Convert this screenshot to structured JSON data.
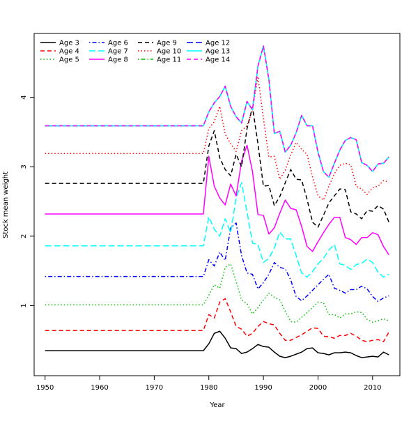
{
  "chart_data": {
    "type": "line",
    "title": "",
    "xlabel": "Year",
    "ylabel": "Stock mean weight",
    "xlim": [
      1948,
      2015
    ],
    "ylim": [
      -0.01,
      4.92
    ],
    "x_ticks": [
      1950,
      1960,
      1970,
      1980,
      1990,
      2000,
      2010
    ],
    "y_ticks": [
      1,
      2,
      3,
      4
    ],
    "grid": false,
    "legend_position": "top-left",
    "x": [
      1950,
      1951,
      1952,
      1953,
      1954,
      1955,
      1956,
      1957,
      1958,
      1959,
      1960,
      1961,
      1962,
      1963,
      1964,
      1965,
      1966,
      1967,
      1968,
      1969,
      1970,
      1971,
      1972,
      1973,
      1974,
      1975,
      1976,
      1977,
      1978,
      1979,
      1980,
      1981,
      1982,
      1983,
      1984,
      1985,
      1986,
      1987,
      1988,
      1989,
      1990,
      1991,
      1992,
      1993,
      1994,
      1995,
      1996,
      1997,
      1998,
      1999,
      2000,
      2001,
      2002,
      2003,
      2004,
      2005,
      2006,
      2007,
      2008,
      2009,
      2010,
      2011,
      2012,
      2013
    ],
    "series": [
      {
        "name": "Age 3",
        "color": "#000000",
        "dash": "solid",
        "values": [
          0.35,
          0.35,
          0.35,
          0.35,
          0.35,
          0.35,
          0.35,
          0.35,
          0.35,
          0.35,
          0.35,
          0.35,
          0.35,
          0.35,
          0.35,
          0.35,
          0.35,
          0.35,
          0.35,
          0.35,
          0.35,
          0.35,
          0.35,
          0.35,
          0.35,
          0.35,
          0.35,
          0.35,
          0.35,
          0.35,
          0.45,
          0.6,
          0.63,
          0.53,
          0.39,
          0.38,
          0.31,
          0.33,
          0.38,
          0.44,
          0.41,
          0.4,
          0.33,
          0.27,
          0.25,
          0.27,
          0.3,
          0.33,
          0.38,
          0.39,
          0.32,
          0.31,
          0.29,
          0.32,
          0.32,
          0.33,
          0.32,
          0.28,
          0.25,
          0.26,
          0.27,
          0.26,
          0.33,
          0.29
        ]
      },
      {
        "name": "Age 4",
        "color": "#ff0000",
        "dash": "dashed",
        "values": [
          0.64,
          0.64,
          0.64,
          0.64,
          0.64,
          0.64,
          0.64,
          0.64,
          0.64,
          0.64,
          0.64,
          0.64,
          0.64,
          0.64,
          0.64,
          0.64,
          0.64,
          0.64,
          0.64,
          0.64,
          0.64,
          0.64,
          0.64,
          0.64,
          0.64,
          0.64,
          0.64,
          0.64,
          0.64,
          0.64,
          0.87,
          0.82,
          1.05,
          1.1,
          0.91,
          0.7,
          0.66,
          0.56,
          0.6,
          0.7,
          0.77,
          0.74,
          0.72,
          0.6,
          0.5,
          0.5,
          0.54,
          0.58,
          0.63,
          0.68,
          0.67,
          0.56,
          0.55,
          0.53,
          0.57,
          0.57,
          0.6,
          0.56,
          0.5,
          0.48,
          0.5,
          0.51,
          0.48,
          0.62
        ]
      },
      {
        "name": "Age 5",
        "color": "#00bb00",
        "dash": "dotted",
        "values": [
          1.01,
          1.01,
          1.01,
          1.01,
          1.01,
          1.01,
          1.01,
          1.01,
          1.01,
          1.01,
          1.01,
          1.01,
          1.01,
          1.01,
          1.01,
          1.01,
          1.01,
          1.01,
          1.01,
          1.01,
          1.01,
          1.01,
          1.01,
          1.01,
          1.01,
          1.01,
          1.01,
          1.01,
          1.01,
          1.01,
          1.15,
          1.3,
          1.25,
          1.55,
          1.6,
          1.35,
          1.08,
          1.03,
          0.88,
          0.97,
          1.08,
          1.18,
          1.12,
          1.08,
          0.92,
          0.77,
          0.76,
          0.83,
          0.9,
          0.97,
          1.05,
          1.04,
          0.87,
          0.87,
          0.82,
          0.88,
          0.88,
          0.91,
          0.9,
          0.8,
          0.76,
          0.78,
          0.81,
          0.78
        ]
      },
      {
        "name": "Age 6",
        "color": "#0000ff",
        "dash": "dotdash",
        "values": [
          1.42,
          1.42,
          1.42,
          1.42,
          1.42,
          1.42,
          1.42,
          1.42,
          1.42,
          1.42,
          1.42,
          1.42,
          1.42,
          1.42,
          1.42,
          1.42,
          1.42,
          1.42,
          1.42,
          1.42,
          1.42,
          1.42,
          1.42,
          1.42,
          1.42,
          1.42,
          1.42,
          1.42,
          1.42,
          1.42,
          1.66,
          1.57,
          1.77,
          1.65,
          2.12,
          2.19,
          1.72,
          1.47,
          1.45,
          1.24,
          1.33,
          1.45,
          1.62,
          1.55,
          1.53,
          1.37,
          1.13,
          1.07,
          1.14,
          1.22,
          1.3,
          1.38,
          1.45,
          1.25,
          1.22,
          1.18,
          1.23,
          1.23,
          1.28,
          1.24,
          1.13,
          1.06,
          1.11,
          1.14
        ]
      },
      {
        "name": "Age 7",
        "color": "#00ffff",
        "dash": "longdash",
        "values": [
          1.86,
          1.86,
          1.86,
          1.86,
          1.86,
          1.86,
          1.86,
          1.86,
          1.86,
          1.86,
          1.86,
          1.86,
          1.86,
          1.86,
          1.86,
          1.86,
          1.86,
          1.86,
          1.86,
          1.86,
          1.86,
          1.86,
          1.86,
          1.86,
          1.86,
          1.86,
          1.86,
          1.86,
          1.86,
          1.86,
          2.28,
          2.1,
          2.0,
          2.25,
          2.05,
          2.55,
          2.77,
          2.35,
          1.9,
          1.88,
          1.62,
          1.68,
          1.83,
          2.06,
          1.96,
          1.96,
          1.72,
          1.47,
          1.41,
          1.49,
          1.6,
          1.68,
          1.8,
          1.88,
          1.6,
          1.58,
          1.52,
          1.59,
          1.61,
          1.67,
          1.62,
          1.48,
          1.41,
          1.45
        ]
      },
      {
        "name": "Age 8",
        "color": "#ff00ff",
        "dash": "solid",
        "values": [
          2.32,
          2.32,
          2.32,
          2.32,
          2.32,
          2.32,
          2.32,
          2.32,
          2.32,
          2.32,
          2.32,
          2.32,
          2.32,
          2.32,
          2.32,
          2.32,
          2.32,
          2.32,
          2.32,
          2.32,
          2.32,
          2.32,
          2.32,
          2.32,
          2.32,
          2.32,
          2.32,
          2.32,
          2.32,
          2.32,
          3.15,
          2.72,
          2.55,
          2.45,
          2.75,
          2.58,
          3.08,
          3.31,
          2.93,
          2.31,
          2.3,
          2.03,
          2.12,
          2.33,
          2.52,
          2.4,
          2.38,
          2.14,
          1.85,
          1.78,
          1.92,
          2.05,
          2.17,
          2.27,
          2.27,
          1.98,
          1.95,
          1.88,
          1.98,
          1.98,
          2.05,
          2.02,
          1.85,
          1.73
        ]
      },
      {
        "name": "Age 9",
        "color": "#000000",
        "dash": "dashed",
        "values": [
          2.76,
          2.76,
          2.76,
          2.76,
          2.76,
          2.76,
          2.76,
          2.76,
          2.76,
          2.76,
          2.76,
          2.76,
          2.76,
          2.76,
          2.76,
          2.76,
          2.76,
          2.76,
          2.76,
          2.76,
          2.76,
          2.76,
          2.76,
          2.76,
          2.76,
          2.76,
          2.76,
          2.76,
          2.76,
          2.76,
          3.3,
          3.52,
          3.13,
          2.96,
          2.87,
          3.18,
          3.0,
          3.55,
          3.86,
          3.33,
          2.72,
          2.73,
          2.44,
          2.57,
          2.77,
          2.96,
          2.82,
          2.81,
          2.53,
          2.2,
          2.13,
          2.3,
          2.48,
          2.58,
          2.68,
          2.67,
          2.35,
          2.32,
          2.25,
          2.37,
          2.36,
          2.44,
          2.39,
          2.2
        ]
      },
      {
        "name": "Age 10",
        "color": "#ff0000",
        "dash": "dotted",
        "values": [
          3.19,
          3.19,
          3.19,
          3.19,
          3.19,
          3.19,
          3.19,
          3.19,
          3.19,
          3.19,
          3.19,
          3.19,
          3.19,
          3.19,
          3.19,
          3.19,
          3.19,
          3.19,
          3.19,
          3.19,
          3.19,
          3.19,
          3.19,
          3.19,
          3.19,
          3.19,
          3.19,
          3.19,
          3.19,
          3.19,
          3.55,
          3.65,
          3.87,
          3.47,
          3.33,
          3.22,
          3.52,
          3.59,
          3.82,
          4.3,
          3.7,
          3.14,
          3.15,
          2.82,
          2.95,
          3.17,
          3.35,
          3.25,
          3.18,
          2.85,
          2.58,
          2.52,
          2.72,
          2.9,
          3.02,
          3.05,
          3.03,
          2.72,
          2.68,
          2.6,
          2.7,
          2.72,
          2.8,
          2.78
        ]
      },
      {
        "name": "Age 11",
        "color": "#00bb00",
        "dash": "dotdash",
        "values": [
          3.59,
          3.59,
          3.59,
          3.59,
          3.59,
          3.59,
          3.59,
          3.59,
          3.59,
          3.59,
          3.59,
          3.59,
          3.59,
          3.59,
          3.59,
          3.59,
          3.59,
          3.59,
          3.59,
          3.59,
          3.59,
          3.59,
          3.59,
          3.59,
          3.59,
          3.59,
          3.59,
          3.59,
          3.59,
          3.59,
          3.79,
          3.92,
          4.01,
          4.16,
          3.87,
          3.72,
          3.63,
          3.94,
          3.82,
          4.45,
          4.74,
          4.26,
          3.48,
          3.51,
          3.21,
          3.31,
          3.49,
          3.74,
          3.59,
          3.59,
          3.21,
          2.93,
          2.85,
          3.05,
          3.24,
          3.38,
          3.42,
          3.39,
          3.06,
          3.02,
          2.93,
          3.04,
          3.05,
          3.14
        ]
      },
      {
        "name": "Age 12",
        "color": "#0000ff",
        "dash": "longdash",
        "values": [
          3.59,
          3.59,
          3.59,
          3.59,
          3.59,
          3.59,
          3.59,
          3.59,
          3.59,
          3.59,
          3.59,
          3.59,
          3.59,
          3.59,
          3.59,
          3.59,
          3.59,
          3.59,
          3.59,
          3.59,
          3.59,
          3.59,
          3.59,
          3.59,
          3.59,
          3.59,
          3.59,
          3.59,
          3.59,
          3.59,
          3.79,
          3.92,
          4.01,
          4.16,
          3.87,
          3.72,
          3.63,
          3.94,
          3.82,
          4.45,
          4.74,
          4.26,
          3.48,
          3.51,
          3.21,
          3.31,
          3.49,
          3.74,
          3.59,
          3.59,
          3.21,
          2.93,
          2.85,
          3.05,
          3.24,
          3.38,
          3.42,
          3.39,
          3.06,
          3.02,
          2.93,
          3.04,
          3.05,
          3.14
        ]
      },
      {
        "name": "Age 13",
        "color": "#00ffff",
        "dash": "solid",
        "values": [
          3.59,
          3.59,
          3.59,
          3.59,
          3.59,
          3.59,
          3.59,
          3.59,
          3.59,
          3.59,
          3.59,
          3.59,
          3.59,
          3.59,
          3.59,
          3.59,
          3.59,
          3.59,
          3.59,
          3.59,
          3.59,
          3.59,
          3.59,
          3.59,
          3.59,
          3.59,
          3.59,
          3.59,
          3.59,
          3.59,
          3.79,
          3.92,
          4.01,
          4.16,
          3.87,
          3.72,
          3.63,
          3.94,
          3.82,
          4.45,
          4.74,
          4.26,
          3.48,
          3.51,
          3.21,
          3.31,
          3.49,
          3.74,
          3.59,
          3.59,
          3.21,
          2.93,
          2.85,
          3.05,
          3.24,
          3.38,
          3.42,
          3.39,
          3.06,
          3.02,
          2.93,
          3.04,
          3.05,
          3.14
        ]
      },
      {
        "name": "Age 14",
        "color": "#ff00ff",
        "dash": "dashed",
        "values": [
          3.59,
          3.59,
          3.59,
          3.59,
          3.59,
          3.59,
          3.59,
          3.59,
          3.59,
          3.59,
          3.59,
          3.59,
          3.59,
          3.59,
          3.59,
          3.59,
          3.59,
          3.59,
          3.59,
          3.59,
          3.59,
          3.59,
          3.59,
          3.59,
          3.59,
          3.59,
          3.59,
          3.59,
          3.59,
          3.59,
          3.79,
          3.92,
          4.01,
          4.16,
          3.87,
          3.72,
          3.63,
          3.94,
          3.82,
          4.45,
          4.74,
          4.26,
          3.48,
          3.51,
          3.21,
          3.31,
          3.49,
          3.74,
          3.59,
          3.59,
          3.21,
          2.93,
          2.85,
          3.05,
          3.24,
          3.38,
          3.42,
          3.39,
          3.06,
          3.02,
          2.93,
          3.04,
          3.05,
          3.14
        ]
      }
    ]
  }
}
